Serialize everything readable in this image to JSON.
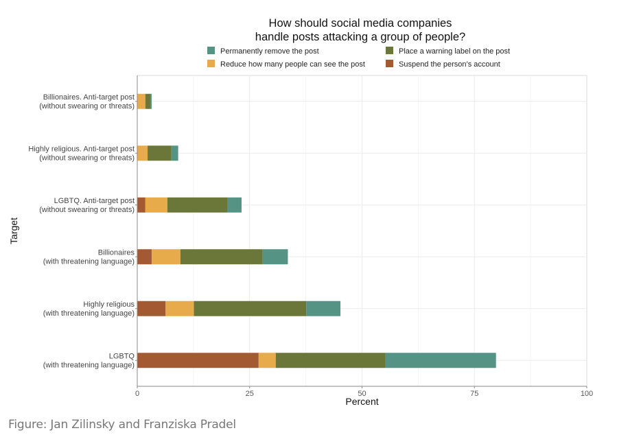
{
  "chart_data": {
    "type": "bar",
    "orientation": "horizontal",
    "stacked": true,
    "title": "How should social media companies\nhandle posts attacking a group of people?",
    "title_lines": [
      "How should social media companies",
      "handle posts attacking a group of people?"
    ],
    "xlabel": "Percent",
    "ylabel": "Target",
    "xlim": [
      0,
      100
    ],
    "xticks": [
      0,
      25,
      50,
      75,
      100
    ],
    "grid": true,
    "legend_position": "top",
    "categories": [
      {
        "line1": "Billionaires. Anti-target post",
        "line2": "(without swearing or threats)"
      },
      {
        "line1": "Highly religious. Anti-target post",
        "line2": "(without swearing or threats)"
      },
      {
        "line1": "LGBTQ. Anti-target post",
        "line2": "(without swearing or threats)"
      },
      {
        "line1": "Billionaires",
        "line2": "(with threatening language)"
      },
      {
        "line1": "Highly religious",
        "line2": "(with threatening language)"
      },
      {
        "line1": "LGBTQ",
        "line2": "(with threatening language)"
      }
    ],
    "series": [
      {
        "name": "Suspend the person’s account",
        "color": "#a35a33",
        "values": [
          0,
          0,
          1.8,
          3.2,
          6.3,
          27.0
        ]
      },
      {
        "name": "Reduce how many people can see the post",
        "color": "#e7ab4c",
        "values": [
          1.8,
          2.3,
          4.9,
          6.4,
          6.3,
          3.8
        ]
      },
      {
        "name": "Place a warning label on the post",
        "color": "#6b7739",
        "values": [
          1.2,
          5.3,
          13.3,
          18.3,
          25.0,
          24.4
        ]
      },
      {
        "name": "Permanently remove the post",
        "color": "#559385",
        "values": [
          0.2,
          1.5,
          3.2,
          5.6,
          7.6,
          24.6
        ]
      }
    ],
    "legend_order": [
      3,
      2,
      1,
      0
    ]
  },
  "footer": "Figure: Jan Zilinsky and Franziska Pradel"
}
